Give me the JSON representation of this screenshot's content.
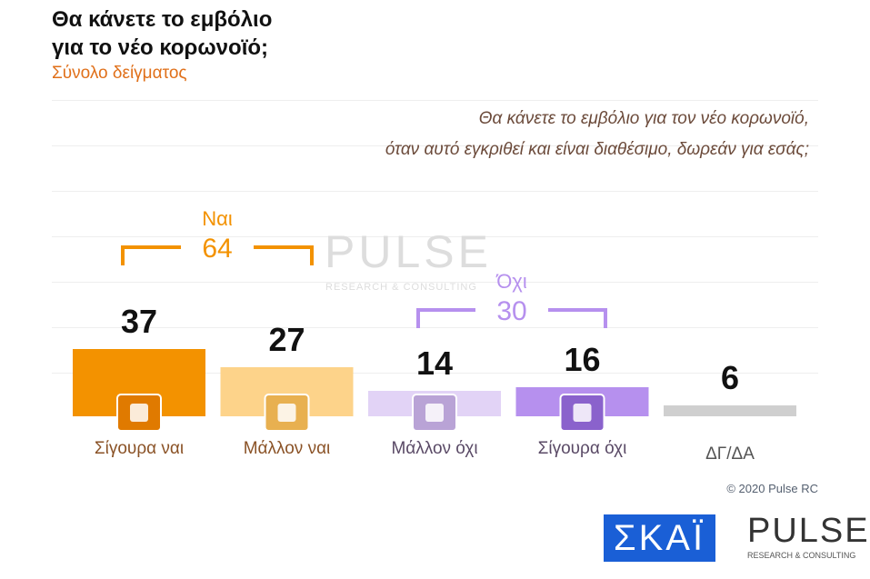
{
  "chart_data": {
    "type": "bar",
    "title": "Θα κάνετε το εμβόλιο για το νέο κορωνοϊό;",
    "subtitle": "Σύνολο δείγματος",
    "question_lines": [
      "Θα κάνετε το εμβόλιο για τον νέο κορωνοϊό,",
      "όταν αυτό εγκριθεί και είναι διαθέσιμο, δωρεάν για εσάς;"
    ],
    "categories": [
      "Σίγουρα ναι",
      "Μάλλον ναι",
      "Μάλλον όχι",
      "Σίγουρα όχι",
      "ΔΓ/ΔΑ"
    ],
    "values": [
      37,
      27,
      14,
      16,
      6
    ],
    "colors": [
      "#f39200",
      "#fdd38a",
      "#e2d3f6",
      "#b690ee",
      "#cfcfcf"
    ],
    "groups": [
      {
        "name": "Ναι",
        "total": 64,
        "color": "#f39200"
      },
      {
        "name": "Όχι",
        "total": 30,
        "color": "#b690ee"
      }
    ],
    "copyright": "© 2020 Pulse RC"
  },
  "logos": {
    "skai": "ΣΚΑΪ",
    "pulse": "PULSE",
    "pulse_tagline": "RESEARCH & CONSULTING"
  }
}
